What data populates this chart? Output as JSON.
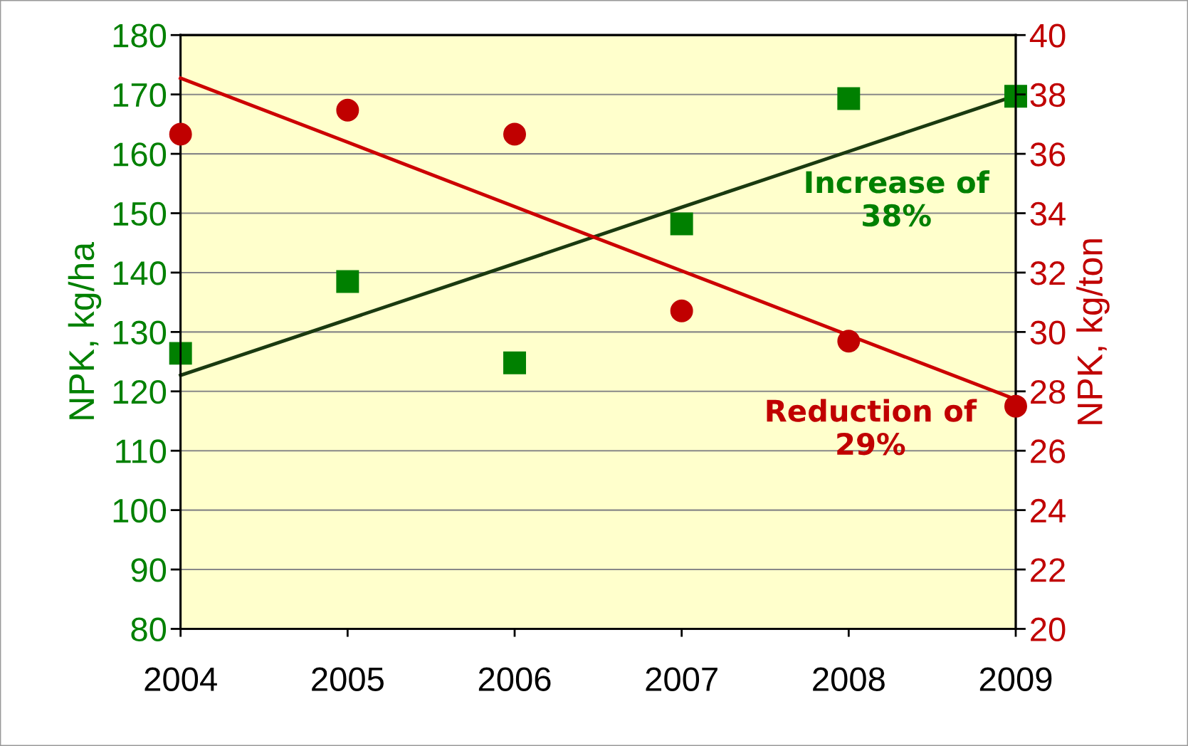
{
  "chart_data": {
    "type": "scatter",
    "ylabel": "NPK, kg/ha",
    "y2label": "NPK, kg/ton",
    "x": [
      2004,
      2005,
      2006,
      2007,
      2008,
      2009
    ],
    "xlim": [
      2004,
      2009
    ],
    "xticks": [
      2004,
      2005,
      2006,
      2007,
      2008,
      2009
    ],
    "ylim": [
      80,
      180
    ],
    "yticks": [
      80,
      90,
      100,
      110,
      120,
      130,
      140,
      150,
      160,
      170,
      180
    ],
    "y2lim": [
      20,
      40
    ],
    "y2ticks": [
      20,
      22,
      24,
      26,
      28,
      30,
      32,
      34,
      36,
      38,
      40
    ],
    "grid": "y",
    "legend": false,
    "series": [
      {
        "marker": "square",
        "color": "#008000",
        "axis": "y",
        "values": [
          126.4,
          138.5,
          124.8,
          148.2,
          169.3,
          169.7
        ]
      },
      {
        "marker": "circle",
        "color": "#c00000",
        "axis": "y2",
        "values": [
          36.66,
          37.47,
          36.66,
          30.71,
          29.69,
          27.5
        ]
      },
      {
        "type": "line",
        "marker": "none",
        "line_style": "solid",
        "color": "#1a3a10",
        "axis": "y",
        "values": [
          122.7,
          132.1,
          141.5,
          151.0,
          160.4,
          169.8
        ]
      },
      {
        "type": "line",
        "marker": "none",
        "line_style": "solid",
        "color": "#cc0000",
        "axis": "y2",
        "values": [
          38.55,
          36.39,
          34.22,
          32.06,
          29.89,
          27.73
        ]
      }
    ],
    "annotations": [
      "Increase of\n38%",
      "Reduction of\n29%"
    ]
  }
}
